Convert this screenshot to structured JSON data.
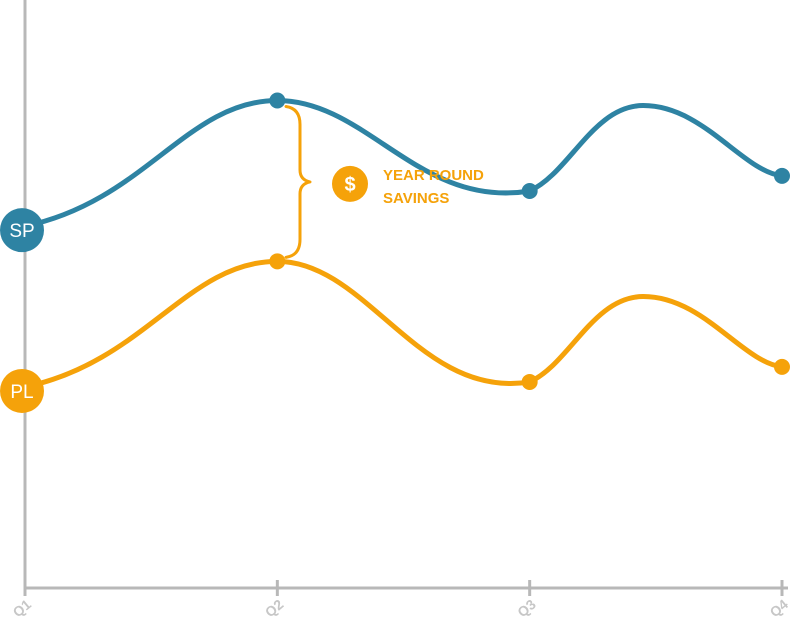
{
  "chart_data": {
    "type": "line",
    "categories": [
      "Q1",
      "Q2",
      "Q3",
      "Q4"
    ],
    "series": [
      {
        "name": "SP",
        "color": "#2e83a3",
        "values": [
          3.6,
          4.85,
          3.95,
          4.1
        ],
        "peak": {
          "x": 3.45,
          "y": 4.8
        }
      },
      {
        "name": "PL",
        "color": "#f5a20a",
        "values": [
          2.0,
          3.25,
          2.05,
          2.2
        ],
        "peak": {
          "x": 3.45,
          "y": 2.9
        }
      }
    ],
    "ylim": [
      0,
      5.85
    ],
    "grid": false,
    "annotation": {
      "icon": "dollar-icon",
      "symbol": "$",
      "lines": [
        "YEAR ROUND",
        "SAVINGS"
      ],
      "color": "#f5a20a"
    }
  }
}
